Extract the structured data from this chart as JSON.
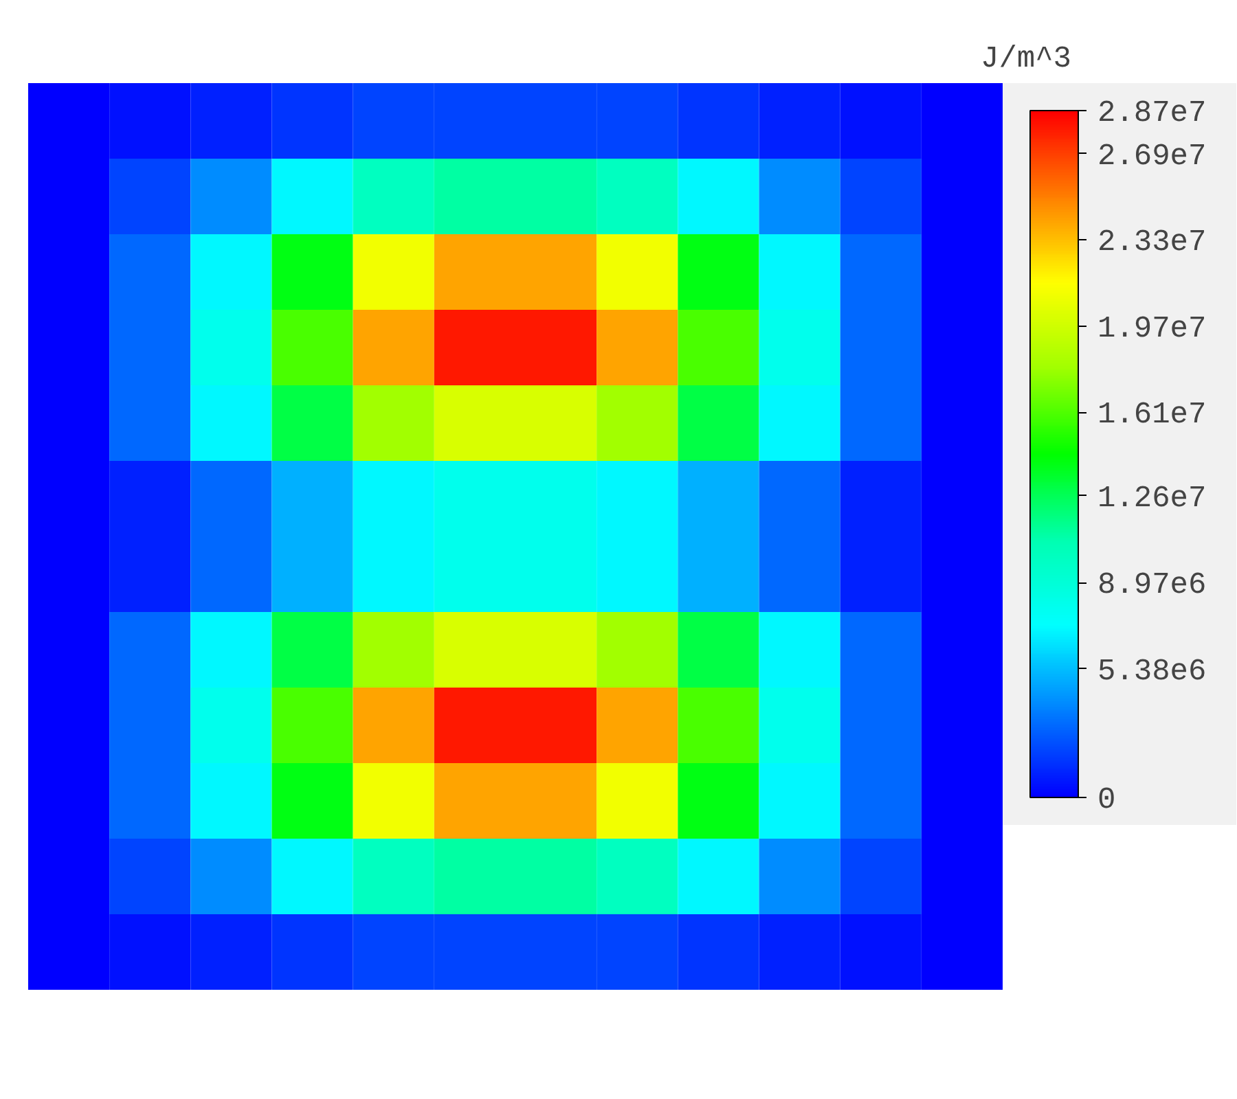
{
  "chart_data": {
    "type": "heatmap",
    "clabel": "J/m^3",
    "categories": [
      null,
      null,
      null,
      null,
      null,
      null,
      null,
      null,
      null,
      null,
      null,
      null
    ],
    "y_categories": [
      null,
      null,
      null,
      null,
      null,
      null,
      null,
      null,
      null,
      null,
      null,
      null
    ],
    "cells": [
      [
        0,
        500000,
        1000000,
        1500000,
        2000000,
        2000000,
        2000000,
        2000000,
        1500000,
        1000000,
        500000,
        0
      ],
      [
        0,
        2000000,
        4000000,
        7000000,
        10000000,
        11000000,
        11000000,
        10000000,
        7000000,
        4000000,
        2000000,
        0
      ],
      [
        0,
        3000000,
        7000000,
        14000000,
        21000000,
        24000000,
        24000000,
        21000000,
        14000000,
        7000000,
        3000000,
        0
      ],
      [
        0,
        3000000,
        8000000,
        16000000,
        24000000,
        28000000,
        28000000,
        24000000,
        16000000,
        8000000,
        3000000,
        0
      ],
      [
        0,
        3000000,
        7000000,
        13000000,
        18000000,
        20000000,
        20000000,
        18000000,
        13000000,
        7000000,
        3000000,
        0
      ],
      [
        0,
        1000000,
        3000000,
        5000000,
        7000000,
        8000000,
        8000000,
        7000000,
        5000000,
        3000000,
        1000000,
        0
      ],
      [
        0,
        1000000,
        3000000,
        5000000,
        7000000,
        8000000,
        8000000,
        7000000,
        5000000,
        3000000,
        1000000,
        0
      ],
      [
        0,
        3000000,
        7000000,
        13000000,
        18000000,
        20000000,
        20000000,
        18000000,
        13000000,
        7000000,
        3000000,
        0
      ],
      [
        0,
        3000000,
        8000000,
        16000000,
        24000000,
        28000000,
        28000000,
        24000000,
        16000000,
        8000000,
        3000000,
        0
      ],
      [
        0,
        3000000,
        7000000,
        14000000,
        21000000,
        24000000,
        24000000,
        21000000,
        14000000,
        7000000,
        3000000,
        0
      ],
      [
        0,
        2000000,
        4000000,
        7000000,
        10000000,
        11000000,
        11000000,
        10000000,
        7000000,
        4000000,
        2000000,
        0
      ],
      [
        0,
        500000,
        1000000,
        1500000,
        2000000,
        2000000,
        2000000,
        2000000,
        1500000,
        1000000,
        500000,
        0
      ]
    ],
    "clim": [
      0,
      28700000
    ],
    "cticks": [
      0,
      {
        "value": 5380000,
        "label": "5.38e6"
      },
      {
        "value": 8970000,
        "label": "8.97e6"
      },
      {
        "value": 12600000,
        "label": "1.26e7"
      },
      {
        "value": 16100000,
        "label": "1.61e7"
      },
      {
        "value": 19700000,
        "label": "1.97e7"
      },
      {
        "value": 23300000,
        "label": "2.33e7"
      },
      {
        "value": 26900000,
        "label": "2.69e7"
      },
      {
        "value": 28700000,
        "label": "2.87e7"
      }
    ],
    "tick_labels": false
  }
}
